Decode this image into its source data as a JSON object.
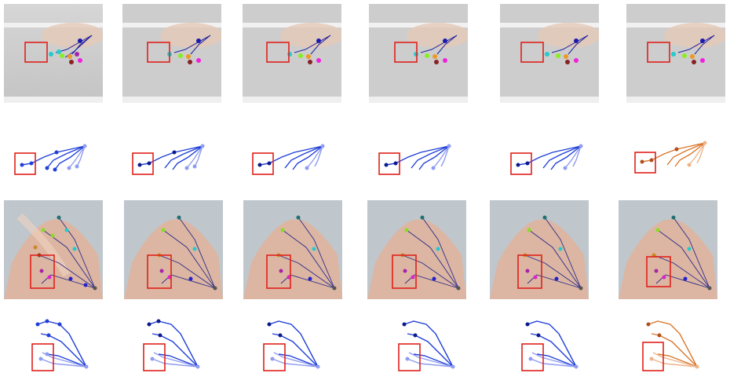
{
  "figure": {
    "rows": [
      {
        "kind": "photo",
        "scene": "ceiling",
        "count": 6
      },
      {
        "kind": "skeleton",
        "variant": "row1",
        "count": 6
      },
      {
        "kind": "photo",
        "scene": "hand",
        "count": 6
      },
      {
        "kind": "skeleton",
        "variant": "row2",
        "count": 6
      }
    ],
    "colors": {
      "highlight_box": "#e0201a",
      "pred_dark": "#0a1a8c",
      "pred_mid": "#1f3fd8",
      "pred_light": "#8f9cf0",
      "gt_dark": "#b0501a",
      "gt_mid": "#d8782e",
      "gt_light": "#efb48a",
      "ceiling_bg": "#cfcfcf",
      "skin": "#e0b7a0"
    },
    "ground_truth_column": 6
  }
}
